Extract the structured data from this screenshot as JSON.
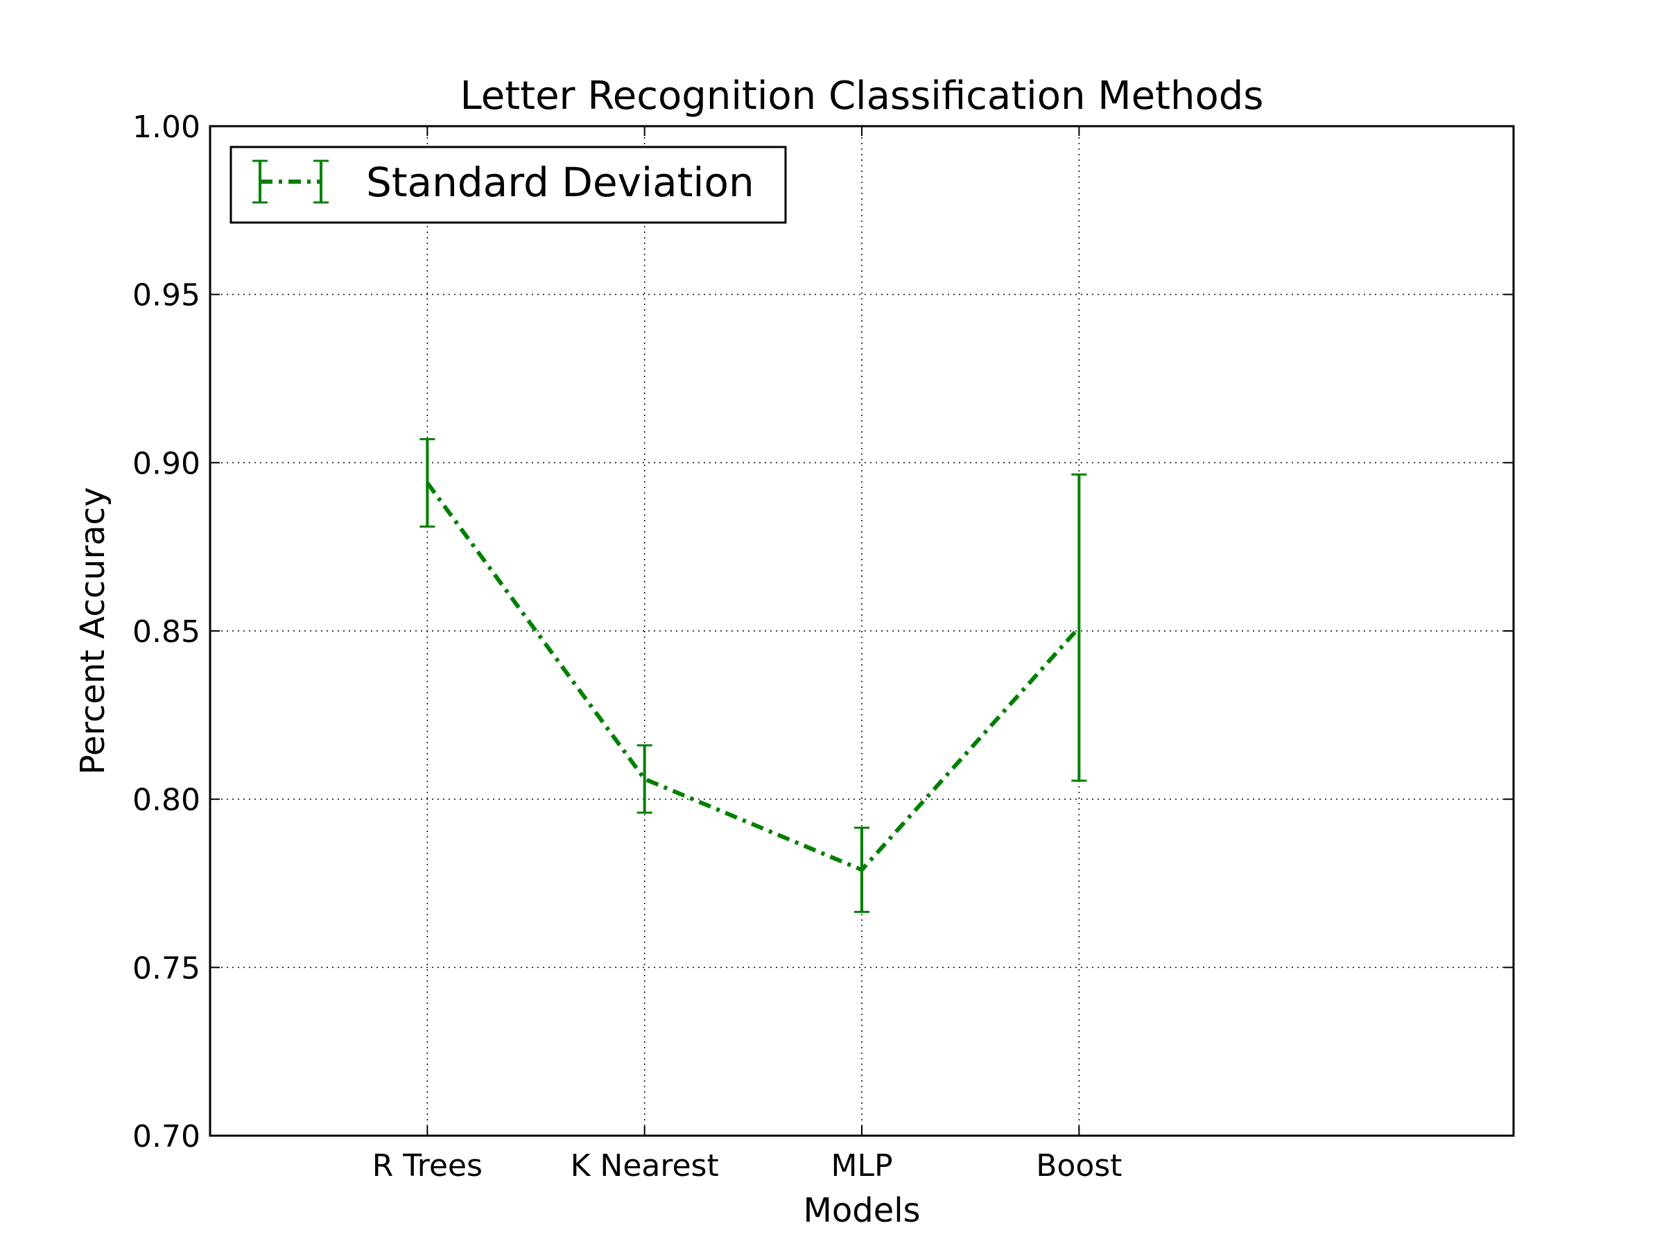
{
  "chart_data": {
    "type": "line",
    "title": "Letter Recognition Classification Methods",
    "xlabel": "Models",
    "ylabel": "Percent Accuracy",
    "categories": [
      "R Trees",
      "K Nearest",
      "MLP",
      "Boost"
    ],
    "xlim": [
      0,
      6
    ],
    "ylim": [
      0.7,
      1.0
    ],
    "yticks": [
      "0.70",
      "0.75",
      "0.80",
      "0.85",
      "0.90",
      "0.95",
      "1.00"
    ],
    "grid": true,
    "legend_position": "upper-left",
    "series": [
      {
        "name": "Standard Deviation",
        "values": [
          0.894,
          0.806,
          0.779,
          0.851
        ],
        "errors": [
          0.013,
          0.01,
          0.0125,
          0.0455
        ],
        "color": "#007f00",
        "linestyle": "dash-dot"
      }
    ]
  }
}
